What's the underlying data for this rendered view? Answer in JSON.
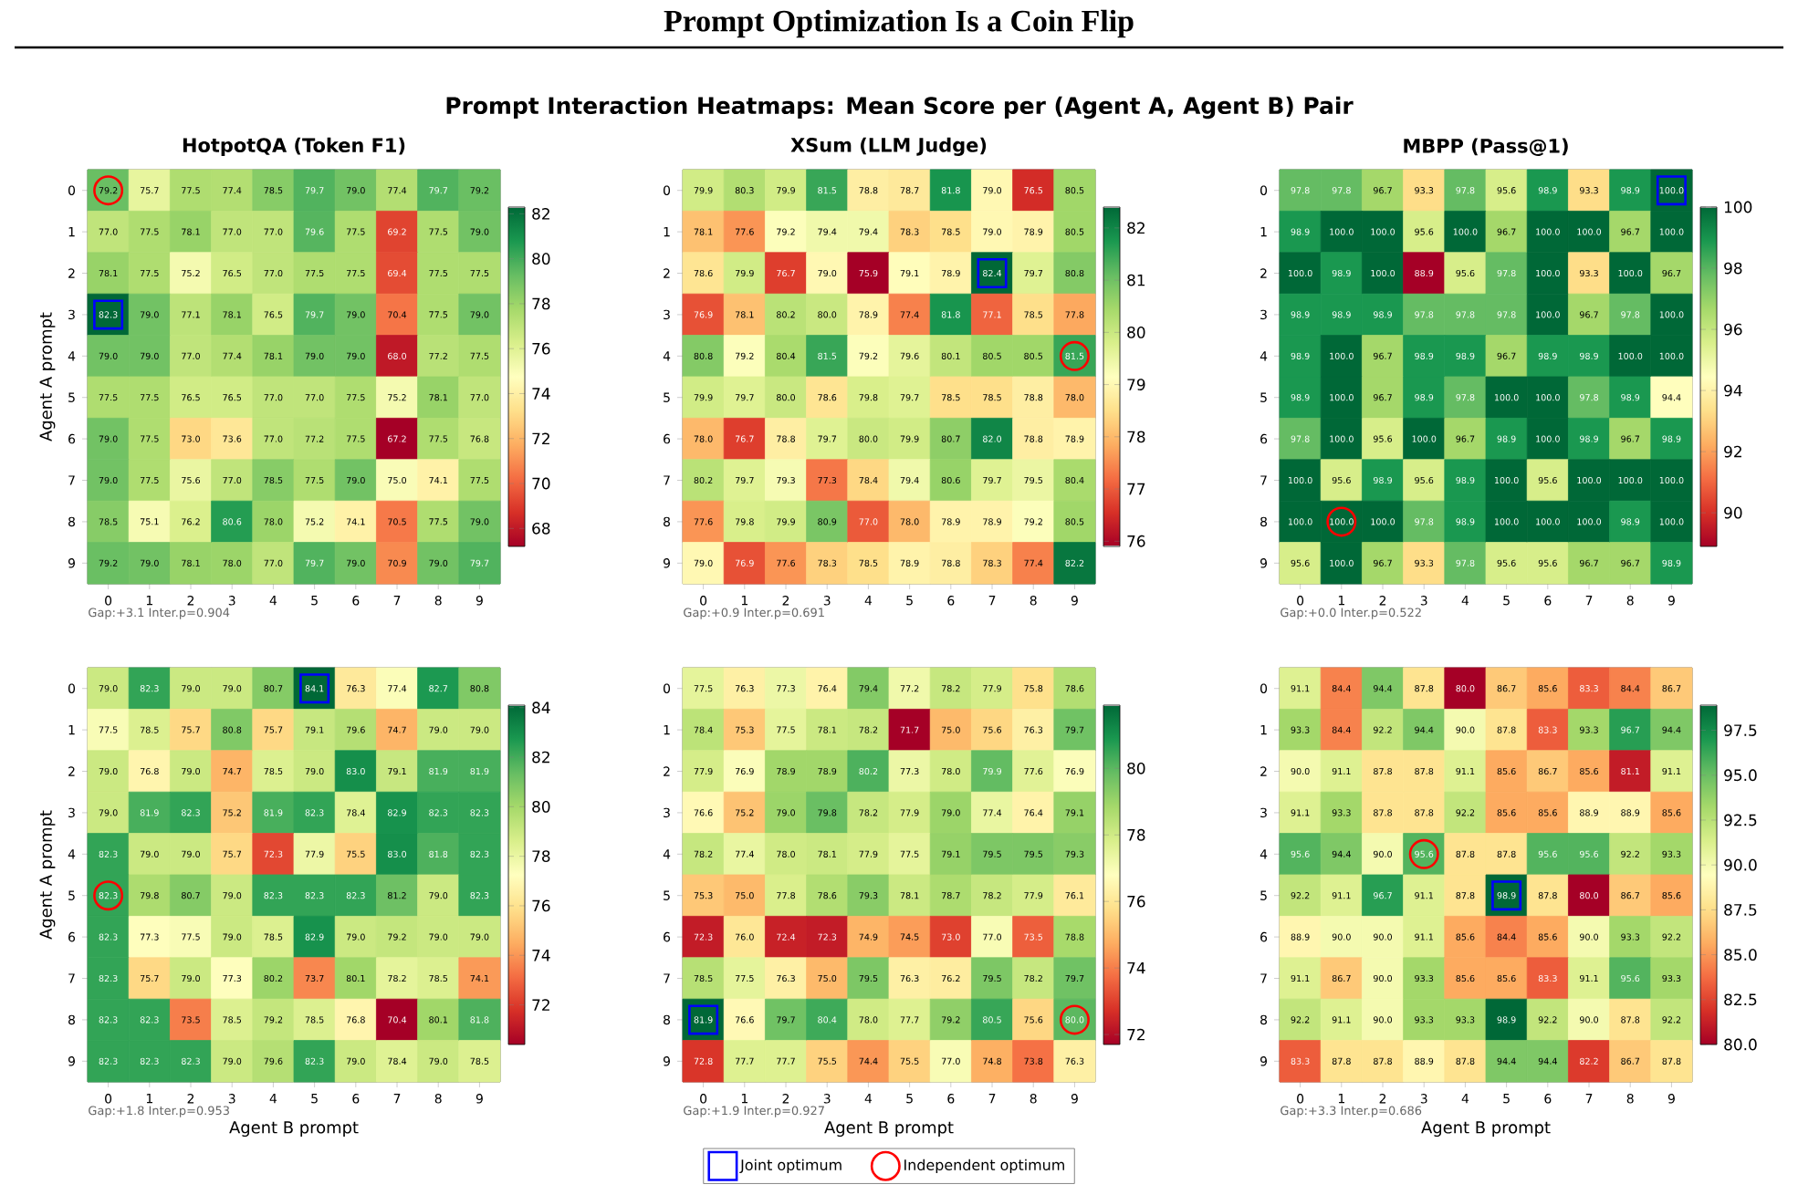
{
  "chart_data": [
    {
      "type": "other",
      "title": "Prompt Optimization Is a Coin Flip",
      "subtitle": "Prompt Interaction Heatmaps: Mean Score per (Agent A, Agent B) Pair"
    },
    {
      "type": "heatmap",
      "title": "HotpotQA (Token F1)",
      "ylabel": "Agent A prompt",
      "categories": [
        "0",
        "1",
        "2",
        "3",
        "4",
        "5",
        "6",
        "7",
        "8",
        "9"
      ],
      "y_categories": [
        "0",
        "1",
        "2",
        "3",
        "4",
        "5",
        "6",
        "7",
        "8",
        "9"
      ],
      "cells": [
        [
          79.2,
          75.7,
          77.5,
          77.4,
          78.5,
          79.7,
          79.0,
          77.4,
          79.7,
          79.2
        ],
        [
          77.0,
          77.5,
          78.1,
          77.0,
          77.0,
          79.6,
          77.5,
          69.2,
          77.5,
          79.0
        ],
        [
          78.1,
          77.5,
          75.2,
          76.5,
          77.0,
          77.5,
          77.5,
          69.4,
          77.5,
          77.5
        ],
        [
          82.3,
          79.0,
          77.1,
          78.1,
          76.5,
          79.7,
          79.0,
          70.4,
          77.5,
          79.0
        ],
        [
          79.0,
          79.0,
          77.0,
          77.4,
          78.1,
          79.0,
          79.0,
          68.0,
          77.2,
          77.5
        ],
        [
          77.5,
          77.5,
          76.5,
          76.5,
          77.0,
          77.0,
          77.5,
          75.2,
          78.1,
          77.0
        ],
        [
          79.0,
          77.5,
          73.0,
          73.6,
          77.0,
          77.2,
          77.5,
          67.2,
          77.5,
          76.8
        ],
        [
          79.0,
          77.5,
          75.6,
          77.0,
          78.5,
          77.5,
          79.0,
          75.0,
          74.1,
          77.5
        ],
        [
          78.5,
          75.1,
          76.2,
          80.6,
          78.0,
          75.2,
          74.1,
          70.5,
          77.5,
          79.0
        ],
        [
          79.2,
          79.0,
          78.1,
          78.0,
          77.0,
          79.7,
          79.0,
          70.9,
          79.0,
          79.7
        ]
      ],
      "cell_labels": [
        [
          "79.2",
          "75.7",
          "77.5",
          "77.4",
          "78.5",
          "79.7",
          "79.0",
          "77.4",
          "79.7",
          "79.2"
        ],
        [
          "77.0",
          "77.5",
          "78.1",
          "77.0",
          "77.0",
          "79.6",
          "77.5",
          "69.2",
          "77.5",
          "79.0"
        ],
        [
          "78.1",
          "77.5",
          "75.2",
          "76.5",
          "77.0",
          "77.5",
          "77.5",
          "69.4",
          "77.5",
          "77.5"
        ],
        [
          "82.3",
          "79.0",
          "77.1",
          "78.1",
          "76.5",
          "79.7",
          "79.0",
          "70.4",
          "77.5",
          "79.0"
        ],
        [
          "79.0",
          "79.0",
          "77.0",
          "77.4",
          "78.1",
          "79.0",
          "79.0",
          "68.0",
          "77.2",
          "77.5"
        ],
        [
          "77.5",
          "77.5",
          "76.5",
          "76.5",
          "77.0",
          "77.0",
          "77.5",
          "75.2",
          "78.1",
          "77.0"
        ],
        [
          "79.0",
          "77.5",
          "73.0",
          "73.6",
          "77.0",
          "77.2",
          "77.5",
          "67.2",
          "77.5",
          "76.8"
        ],
        [
          "79.0",
          "77.5",
          "75.6",
          "77.0",
          "78.5",
          "77.5",
          "79.0",
          "75.0",
          "74.1",
          "77.5"
        ],
        [
          "78.5",
          "75.1",
          "76.2",
          "80.6",
          "78.0",
          "75.2",
          "74.1",
          "70.5",
          "77.5",
          "79.0"
        ],
        [
          "79.2",
          "79.0",
          "78.1",
          "78.0",
          "77.0",
          "79.7",
          "79.0",
          "70.9",
          "79.0",
          "79.7"
        ]
      ],
      "clim": [
        67.2,
        82.3
      ],
      "cticks": [
        68,
        70,
        72,
        74,
        76,
        78,
        80,
        82
      ],
      "annotations": [
        "Gap:+3.1 Inter.p=0.904"
      ],
      "series": [
        {
          "type": "scatter",
          "marker": "square",
          "color": "#0000ff",
          "x": [
            "0"
          ],
          "values": [
            3
          ]
        },
        {
          "type": "scatter",
          "marker": "circle",
          "color": "#ff0000",
          "x": [
            "0"
          ],
          "values": [
            0
          ]
        }
      ]
    },
    {
      "type": "heatmap",
      "title": "XSum (LLM Judge)",
      "categories": [
        "0",
        "1",
        "2",
        "3",
        "4",
        "5",
        "6",
        "7",
        "8",
        "9"
      ],
      "y_categories": [
        "0",
        "1",
        "2",
        "3",
        "4",
        "5",
        "6",
        "7",
        "8",
        "9"
      ],
      "cells": [
        [
          79.9,
          80.3,
          79.9,
          81.5,
          78.8,
          78.7,
          81.8,
          79.0,
          76.5,
          80.5
        ],
        [
          78.1,
          77.6,
          79.2,
          79.4,
          79.4,
          78.3,
          78.5,
          79.0,
          78.9,
          80.5
        ],
        [
          78.6,
          79.9,
          76.7,
          79.0,
          75.9,
          79.1,
          78.9,
          82.4,
          79.7,
          80.8
        ],
        [
          76.9,
          78.1,
          80.2,
          80.0,
          78.9,
          77.4,
          81.8,
          77.1,
          78.5,
          77.8
        ],
        [
          80.8,
          79.2,
          80.4,
          81.5,
          79.2,
          79.6,
          80.1,
          80.5,
          80.5,
          81.5
        ],
        [
          79.9,
          79.7,
          80.0,
          78.6,
          79.8,
          79.7,
          78.5,
          78.5,
          78.8,
          78.0
        ],
        [
          78.0,
          76.7,
          78.8,
          79.7,
          80.0,
          79.9,
          80.7,
          82.0,
          78.8,
          78.9
        ],
        [
          80.2,
          79.7,
          79.3,
          77.3,
          78.4,
          79.4,
          80.6,
          79.7,
          79.5,
          80.4
        ],
        [
          77.6,
          79.8,
          79.9,
          80.9,
          77.0,
          78.0,
          78.9,
          78.9,
          79.2,
          80.5
        ],
        [
          79.0,
          76.9,
          77.6,
          78.3,
          78.5,
          78.9,
          78.8,
          78.3,
          77.4,
          82.2
        ]
      ],
      "cell_labels": [
        [
          "79.9",
          "80.3",
          "79.9",
          "81.5",
          "78.8",
          "78.7",
          "81.8",
          "79.0",
          "76.5",
          "80.5"
        ],
        [
          "78.1",
          "77.6",
          "79.2",
          "79.4",
          "79.4",
          "78.3",
          "78.5",
          "79.0",
          "78.9",
          "80.5"
        ],
        [
          "78.6",
          "79.9",
          "76.7",
          "79.0",
          "75.9",
          "79.1",
          "78.9",
          "82.4",
          "79.7",
          "80.8"
        ],
        [
          "76.9",
          "78.1",
          "80.2",
          "80.0",
          "78.9",
          "77.4",
          "81.8",
          "77.1",
          "78.5",
          "77.8"
        ],
        [
          "80.8",
          "79.2",
          "80.4",
          "81.5",
          "79.2",
          "79.6",
          "80.1",
          "80.5",
          "80.5",
          "81.5"
        ],
        [
          "79.9",
          "79.7",
          "80.0",
          "78.6",
          "79.8",
          "79.7",
          "78.5",
          "78.5",
          "78.8",
          "78.0"
        ],
        [
          "78.0",
          "76.7",
          "78.8",
          "79.7",
          "80.0",
          "79.9",
          "80.7",
          "82.0",
          "78.8",
          "78.9"
        ],
        [
          "80.2",
          "79.7",
          "79.3",
          "77.3",
          "78.4",
          "79.4",
          "80.6",
          "79.7",
          "79.5",
          "80.4"
        ],
        [
          "77.6",
          "79.8",
          "79.9",
          "80.9",
          "77.0",
          "78.0",
          "78.9",
          "78.9",
          "79.2",
          "80.5"
        ],
        [
          "79.0",
          "76.9",
          "77.6",
          "78.3",
          "78.5",
          "78.9",
          "78.8",
          "78.3",
          "77.4",
          "82.2"
        ]
      ],
      "clim": [
        75.9,
        82.4
      ],
      "cticks": [
        76,
        77,
        78,
        79,
        80,
        81,
        82
      ],
      "annotations": [
        "Gap:+0.9 Inter.p=0.691"
      ],
      "series": [
        {
          "type": "scatter",
          "marker": "square",
          "color": "#0000ff",
          "x": [
            "7"
          ],
          "values": [
            2
          ]
        },
        {
          "type": "scatter",
          "marker": "circle",
          "color": "#ff0000",
          "x": [
            "9"
          ],
          "values": [
            4
          ]
        }
      ]
    },
    {
      "type": "heatmap",
      "title": "MBPP (Pass@1)",
      "categories": [
        "0",
        "1",
        "2",
        "3",
        "4",
        "5",
        "6",
        "7",
        "8",
        "9"
      ],
      "y_categories": [
        "0",
        "1",
        "2",
        "3",
        "4",
        "5",
        "6",
        "7",
        "8",
        "9"
      ],
      "cells": [
        [
          97.8,
          97.8,
          96.7,
          93.3,
          97.8,
          95.6,
          98.9,
          93.3,
          98.9,
          100.0
        ],
        [
          98.9,
          100.0,
          100.0,
          95.6,
          100.0,
          96.7,
          100.0,
          100.0,
          96.7,
          100.0
        ],
        [
          100.0,
          98.9,
          100.0,
          88.9,
          95.6,
          97.8,
          100.0,
          93.3,
          100.0,
          96.7
        ],
        [
          98.9,
          98.9,
          98.9,
          97.8,
          97.8,
          97.8,
          100.0,
          96.7,
          97.8,
          100.0
        ],
        [
          98.9,
          100.0,
          96.7,
          98.9,
          98.9,
          96.7,
          98.9,
          98.9,
          100.0,
          100.0
        ],
        [
          98.9,
          100.0,
          96.7,
          98.9,
          97.8,
          100.0,
          100.0,
          97.8,
          98.9,
          94.4
        ],
        [
          97.8,
          100.0,
          95.6,
          100.0,
          96.7,
          98.9,
          100.0,
          98.9,
          96.7,
          98.9
        ],
        [
          100.0,
          95.6,
          98.9,
          95.6,
          98.9,
          100.0,
          95.6,
          100.0,
          100.0,
          100.0
        ],
        [
          100.0,
          100.0,
          100.0,
          97.8,
          98.9,
          100.0,
          100.0,
          100.0,
          98.9,
          100.0
        ],
        [
          95.6,
          100.0,
          96.7,
          93.3,
          97.8,
          95.6,
          95.6,
          96.7,
          96.7,
          98.9
        ]
      ],
      "cell_labels": [
        [
          "97.8",
          "97.8",
          "96.7",
          "93.3",
          "97.8",
          "95.6",
          "98.9",
          "93.3",
          "98.9",
          "100.0"
        ],
        [
          "98.9",
          "100.0",
          "100.0",
          "95.6",
          "100.0",
          "96.7",
          "100.0",
          "100.0",
          "96.7",
          "100.0"
        ],
        [
          "100.0",
          "98.9",
          "100.0",
          "88.9",
          "95.6",
          "97.8",
          "100.0",
          "93.3",
          "100.0",
          "96.7"
        ],
        [
          "98.9",
          "98.9",
          "98.9",
          "97.8",
          "97.8",
          "97.8",
          "100.0",
          "96.7",
          "97.8",
          "100.0"
        ],
        [
          "98.9",
          "100.0",
          "96.7",
          "98.9",
          "98.9",
          "96.7",
          "98.9",
          "98.9",
          "100.0",
          "100.0"
        ],
        [
          "98.9",
          "100.0",
          "96.7",
          "98.9",
          "97.8",
          "100.0",
          "100.0",
          "97.8",
          "98.9",
          "94.4"
        ],
        [
          "97.8",
          "100.0",
          "95.6",
          "100.0",
          "96.7",
          "98.9",
          "100.0",
          "98.9",
          "96.7",
          "98.9"
        ],
        [
          "100.0",
          "95.6",
          "98.9",
          "95.6",
          "98.9",
          "100.0",
          "95.6",
          "100.0",
          "100.0",
          "100.0"
        ],
        [
          "100.0",
          "100.0",
          "100.0",
          "97.8",
          "98.9",
          "100.0",
          "100.0",
          "100.0",
          "98.9",
          "100.0"
        ],
        [
          "95.6",
          "100.0",
          "96.7",
          "93.3",
          "97.8",
          "95.6",
          "95.6",
          "96.7",
          "96.7",
          "98.9"
        ]
      ],
      "clim": [
        88.9,
        100.0
      ],
      "cticks": [
        90,
        92,
        94,
        96,
        98,
        100
      ],
      "annotations": [
        "Gap:+0.0 Inter.p=0.522"
      ],
      "series": [
        {
          "type": "scatter",
          "marker": "square",
          "color": "#0000ff",
          "x": [
            "9"
          ],
          "values": [
            0
          ]
        },
        {
          "type": "scatter",
          "marker": "circle",
          "color": "#ff0000",
          "x": [
            "1"
          ],
          "values": [
            8
          ]
        }
      ]
    },
    {
      "type": "heatmap",
      "xlabel": "Agent B prompt",
      "ylabel": "Agent A prompt",
      "categories": [
        "0",
        "1",
        "2",
        "3",
        "4",
        "5",
        "6",
        "7",
        "8",
        "9"
      ],
      "y_categories": [
        "0",
        "1",
        "2",
        "3",
        "4",
        "5",
        "6",
        "7",
        "8",
        "9"
      ],
      "cells": [
        [
          79.0,
          82.3,
          79.0,
          79.0,
          80.7,
          84.1,
          76.3,
          77.4,
          82.7,
          80.8
        ],
        [
          77.5,
          78.5,
          75.7,
          80.8,
          75.7,
          79.1,
          79.6,
          74.7,
          79.0,
          79.0
        ],
        [
          79.0,
          76.8,
          79.0,
          74.7,
          78.5,
          79.0,
          83.0,
          79.1,
          81.9,
          81.9
        ],
        [
          79.0,
          81.9,
          82.3,
          75.2,
          81.9,
          82.3,
          78.4,
          82.9,
          82.3,
          82.3
        ],
        [
          82.3,
          79.0,
          79.0,
          75.7,
          72.3,
          77.9,
          75.5,
          83.0,
          81.8,
          82.3
        ],
        [
          82.3,
          79.8,
          80.7,
          79.0,
          82.3,
          82.3,
          82.3,
          81.2,
          79.0,
          82.3
        ],
        [
          82.3,
          77.3,
          77.5,
          79.0,
          78.5,
          82.9,
          79.0,
          79.2,
          79.0,
          79.0
        ],
        [
          82.3,
          75.7,
          79.0,
          77.3,
          80.2,
          73.7,
          80.1,
          78.2,
          78.5,
          74.1
        ],
        [
          82.3,
          82.3,
          73.5,
          78.5,
          79.2,
          78.5,
          76.8,
          70.4,
          80.1,
          81.8
        ],
        [
          82.3,
          82.3,
          82.3,
          79.0,
          79.6,
          82.3,
          79.0,
          78.4,
          79.0,
          78.5
        ]
      ],
      "cell_labels": [
        [
          "79.0",
          "82.3",
          "79.0",
          "79.0",
          "80.7",
          "84.1",
          "76.3",
          "77.4",
          "82.7",
          "80.8"
        ],
        [
          "77.5",
          "78.5",
          "75.7",
          "80.8",
          "75.7",
          "79.1",
          "79.6",
          "74.7",
          "79.0",
          "79.0"
        ],
        [
          "79.0",
          "76.8",
          "79.0",
          "74.7",
          "78.5",
          "79.0",
          "83.0",
          "79.1",
          "81.9",
          "81.9"
        ],
        [
          "79.0",
          "81.9",
          "82.3",
          "75.2",
          "81.9",
          "82.3",
          "78.4",
          "82.9",
          "82.3",
          "82.3"
        ],
        [
          "82.3",
          "79.0",
          "79.0",
          "75.7",
          "72.3",
          "77.9",
          "75.5",
          "83.0",
          "81.8",
          "82.3"
        ],
        [
          "82.3",
          "79.8",
          "80.7",
          "79.0",
          "82.3",
          "82.3",
          "82.3",
          "81.2",
          "79.0",
          "82.3"
        ],
        [
          "82.3",
          "77.3",
          "77.5",
          "79.0",
          "78.5",
          "82.9",
          "79.0",
          "79.2",
          "79.0",
          "79.0"
        ],
        [
          "82.3",
          "75.7",
          "79.0",
          "77.3",
          "80.2",
          "73.7",
          "80.1",
          "78.2",
          "78.5",
          "74.1"
        ],
        [
          "82.3",
          "82.3",
          "73.5",
          "78.5",
          "79.2",
          "78.5",
          "76.8",
          "70.4",
          "80.1",
          "81.8"
        ],
        [
          "82.3",
          "82.3",
          "82.3",
          "79.0",
          "79.6",
          "82.3",
          "79.0",
          "78.4",
          "79.0",
          "78.5"
        ]
      ],
      "clim": [
        70.4,
        84.1
      ],
      "cticks": [
        72,
        74,
        76,
        78,
        80,
        82,
        84
      ],
      "annotations": [
        "Gap:+1.8 Inter.p=0.953"
      ],
      "series": [
        {
          "type": "scatter",
          "marker": "square",
          "color": "#0000ff",
          "x": [
            "5"
          ],
          "values": [
            0
          ]
        },
        {
          "type": "scatter",
          "marker": "circle",
          "color": "#ff0000",
          "x": [
            "0"
          ],
          "values": [
            5
          ]
        }
      ]
    },
    {
      "type": "heatmap",
      "xlabel": "Agent B prompt",
      "categories": [
        "0",
        "1",
        "2",
        "3",
        "4",
        "5",
        "6",
        "7",
        "8",
        "9"
      ],
      "y_categories": [
        "0",
        "1",
        "2",
        "3",
        "4",
        "5",
        "6",
        "7",
        "8",
        "9"
      ],
      "cells": [
        [
          77.5,
          76.3,
          77.3,
          76.4,
          79.4,
          77.2,
          78.2,
          77.9,
          75.8,
          78.6
        ],
        [
          78.4,
          75.3,
          77.5,
          78.1,
          78.2,
          71.7,
          75.0,
          75.6,
          76.3,
          79.7
        ],
        [
          77.9,
          76.9,
          78.9,
          78.9,
          80.2,
          77.3,
          78.0,
          79.9,
          77.6,
          76.9
        ],
        [
          76.6,
          75.2,
          79.0,
          79.8,
          78.2,
          77.9,
          79.0,
          77.4,
          76.4,
          79.1
        ],
        [
          78.2,
          77.4,
          78.0,
          78.1,
          77.9,
          77.5,
          79.1,
          79.5,
          79.5,
          79.3
        ],
        [
          75.3,
          75.0,
          77.8,
          78.6,
          79.3,
          78.1,
          78.7,
          78.2,
          77.9,
          76.1
        ],
        [
          72.3,
          76.0,
          72.4,
          72.3,
          74.9,
          74.5,
          73.0,
          77.0,
          73.5,
          78.8
        ],
        [
          78.5,
          77.5,
          76.3,
          75.0,
          79.5,
          76.3,
          76.2,
          79.5,
          78.2,
          79.7
        ],
        [
          81.9,
          76.6,
          79.7,
          80.4,
          78.0,
          77.7,
          79.2,
          80.5,
          75.6,
          80.0
        ],
        [
          72.8,
          77.7,
          77.7,
          75.5,
          74.4,
          75.5,
          77.0,
          74.8,
          73.8,
          76.3
        ]
      ],
      "cell_labels": [
        [
          "77.5",
          "76.3",
          "77.3",
          "76.4",
          "79.4",
          "77.2",
          "78.2",
          "77.9",
          "75.8",
          "78.6"
        ],
        [
          "78.4",
          "75.3",
          "77.5",
          "78.1",
          "78.2",
          "71.7",
          "75.0",
          "75.6",
          "76.3",
          "79.7"
        ],
        [
          "77.9",
          "76.9",
          "78.9",
          "78.9",
          "80.2",
          "77.3",
          "78.0",
          "79.9",
          "77.6",
          "76.9"
        ],
        [
          "76.6",
          "75.2",
          "79.0",
          "79.8",
          "78.2",
          "77.9",
          "79.0",
          "77.4",
          "76.4",
          "79.1"
        ],
        [
          "78.2",
          "77.4",
          "78.0",
          "78.1",
          "77.9",
          "77.5",
          "79.1",
          "79.5",
          "79.5",
          "79.3"
        ],
        [
          "75.3",
          "75.0",
          "77.8",
          "78.6",
          "79.3",
          "78.1",
          "78.7",
          "78.2",
          "77.9",
          "76.1"
        ],
        [
          "72.3",
          "76.0",
          "72.4",
          "72.3",
          "74.9",
          "74.5",
          "73.0",
          "77.0",
          "73.5",
          "78.8"
        ],
        [
          "78.5",
          "77.5",
          "76.3",
          "75.0",
          "79.5",
          "76.3",
          "76.2",
          "79.5",
          "78.2",
          "79.7"
        ],
        [
          "81.9",
          "76.6",
          "79.7",
          "80.4",
          "78.0",
          "77.7",
          "79.2",
          "80.5",
          "75.6",
          "80.0"
        ],
        [
          "72.8",
          "77.7",
          "77.7",
          "75.5",
          "74.4",
          "75.5",
          "77.0",
          "74.8",
          "73.8",
          "76.3"
        ]
      ],
      "clim": [
        71.7,
        81.9
      ],
      "cticks": [
        72,
        74,
        76,
        78,
        80
      ],
      "annotations": [
        "Gap:+1.9 Inter.p=0.927"
      ],
      "legend": "bottom",
      "series": [
        {
          "name": "Joint optimum",
          "type": "scatter",
          "marker": "square",
          "color": "#0000ff",
          "x": [
            "0"
          ],
          "values": [
            8
          ]
        },
        {
          "name": "Independent optimum",
          "type": "scatter",
          "marker": "circle",
          "color": "#ff0000",
          "x": [
            "9"
          ],
          "values": [
            8
          ]
        }
      ]
    },
    {
      "type": "heatmap",
      "xlabel": "Agent B prompt",
      "categories": [
        "0",
        "1",
        "2",
        "3",
        "4",
        "5",
        "6",
        "7",
        "8",
        "9"
      ],
      "y_categories": [
        "0",
        "1",
        "2",
        "3",
        "4",
        "5",
        "6",
        "7",
        "8",
        "9"
      ],
      "cells": [
        [
          91.1,
          84.4,
          94.4,
          87.8,
          80.0,
          86.7,
          85.6,
          83.3,
          84.4,
          86.7
        ],
        [
          93.3,
          84.4,
          92.2,
          94.4,
          90.0,
          87.8,
          83.3,
          93.3,
          96.7,
          94.4
        ],
        [
          90.0,
          91.1,
          87.8,
          87.8,
          91.1,
          85.6,
          86.7,
          85.6,
          81.1,
          91.1
        ],
        [
          91.1,
          93.3,
          87.8,
          87.8,
          92.2,
          85.6,
          85.6,
          88.9,
          88.9,
          85.6
        ],
        [
          95.6,
          94.4,
          90.0,
          95.6,
          87.8,
          87.8,
          95.6,
          95.6,
          92.2,
          93.3
        ],
        [
          92.2,
          91.1,
          96.7,
          91.1,
          87.8,
          98.9,
          87.8,
          80.0,
          86.7,
          85.6
        ],
        [
          88.9,
          90.0,
          90.0,
          91.1,
          85.6,
          84.4,
          85.6,
          90.0,
          93.3,
          92.2
        ],
        [
          91.1,
          86.7,
          90.0,
          93.3,
          85.6,
          85.6,
          83.3,
          91.1,
          95.6,
          93.3
        ],
        [
          92.2,
          91.1,
          90.0,
          93.3,
          93.3,
          98.9,
          92.2,
          90.0,
          87.8,
          92.2
        ],
        [
          83.3,
          87.8,
          87.8,
          88.9,
          87.8,
          94.4,
          94.4,
          82.2,
          86.7,
          87.8
        ]
      ],
      "cell_labels": [
        [
          "91.1",
          "84.4",
          "94.4",
          "87.8",
          "80.0",
          "86.7",
          "85.6",
          "83.3",
          "84.4",
          "86.7"
        ],
        [
          "93.3",
          "84.4",
          "92.2",
          "94.4",
          "90.0",
          "87.8",
          "83.3",
          "93.3",
          "96.7",
          "94.4"
        ],
        [
          "90.0",
          "91.1",
          "87.8",
          "87.8",
          "91.1",
          "85.6",
          "86.7",
          "85.6",
          "81.1",
          "91.1"
        ],
        [
          "91.1",
          "93.3",
          "87.8",
          "87.8",
          "92.2",
          "85.6",
          "85.6",
          "88.9",
          "88.9",
          "85.6"
        ],
        [
          "95.6",
          "94.4",
          "90.0",
          "95.6",
          "87.8",
          "87.8",
          "95.6",
          "95.6",
          "92.2",
          "93.3"
        ],
        [
          "92.2",
          "91.1",
          "96.7",
          "91.1",
          "87.8",
          "98.9",
          "87.8",
          "80.0",
          "86.7",
          "85.6"
        ],
        [
          "88.9",
          "90.0",
          "90.0",
          "91.1",
          "85.6",
          "84.4",
          "85.6",
          "90.0",
          "93.3",
          "92.2"
        ],
        [
          "91.1",
          "86.7",
          "90.0",
          "93.3",
          "85.6",
          "85.6",
          "83.3",
          "91.1",
          "95.6",
          "93.3"
        ],
        [
          "92.2",
          "91.1",
          "90.0",
          "93.3",
          "93.3",
          "98.9",
          "92.2",
          "90.0",
          "87.8",
          "92.2"
        ],
        [
          "83.3",
          "87.8",
          "87.8",
          "88.9",
          "87.8",
          "94.4",
          "94.4",
          "82.2",
          "86.7",
          "87.8"
        ]
      ],
      "clim": [
        80.0,
        98.9
      ],
      "cticks": [
        {
          "value": 80,
          "label": "80.0"
        },
        82.5,
        {
          "value": 85,
          "label": "85.0"
        },
        87.5,
        {
          "value": 90,
          "label": "90.0"
        },
        92.5,
        {
          "value": 95,
          "label": "95.0"
        },
        97.5
      ],
      "annotations": [
        "Gap:+3.3 Inter.p=0.686"
      ],
      "series": [
        {
          "type": "scatter",
          "marker": "square",
          "color": "#0000ff",
          "x": [
            "5"
          ],
          "values": [
            5
          ]
        },
        {
          "type": "scatter",
          "marker": "circle",
          "color": "#ff0000",
          "x": [
            "3"
          ],
          "values": [
            4
          ]
        }
      ]
    }
  ]
}
